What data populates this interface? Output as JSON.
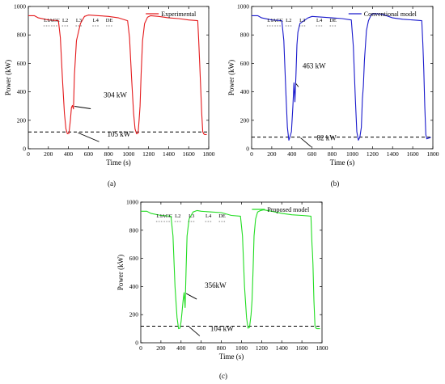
{
  "figure": {
    "panel_labels": [
      "(a)",
      "(b)",
      "(c)"
    ]
  },
  "chart_data": [
    {
      "type": "line",
      "panel": "(a)",
      "xlabel": "Time (s)",
      "ylabel": "Power (kW)",
      "xlim": [
        0,
        1800
      ],
      "ylim": [
        0,
        1000
      ],
      "xticks": [
        0,
        200,
        400,
        600,
        800,
        1000,
        1200,
        1400,
        1600,
        1800
      ],
      "yticks": [
        0,
        200,
        400,
        600,
        800,
        1000
      ],
      "grid": false,
      "legend_position": "top-right",
      "series": [
        {
          "name": "Experimental",
          "color": "#e41a1c",
          "x": [
            0,
            60,
            100,
            200,
            300,
            320,
            340,
            360,
            375,
            390,
            405,
            420,
            430,
            440,
            450,
            460,
            480,
            520,
            560,
            600,
            700,
            800,
            900,
            990,
            1010,
            1030,
            1050,
            1065,
            1080,
            1095,
            1105,
            1115,
            1125,
            1140,
            1160,
            1190,
            1220,
            1300,
            1400,
            1500,
            1600,
            1690,
            1700,
            1705,
            1710,
            1720,
            1730,
            1740,
            1750,
            1760,
            1780
          ],
          "y": [
            935,
            935,
            920,
            905,
            900,
            780,
            500,
            250,
            140,
            105,
            108,
            200,
            290,
            304,
            280,
            520,
            760,
            880,
            930,
            940,
            935,
            930,
            920,
            900,
            780,
            500,
            250,
            140,
            105,
            110,
            200,
            300,
            520,
            760,
            880,
            925,
            935,
            930,
            920,
            915,
            905,
            900,
            760,
            680,
            600,
            420,
            250,
            120,
            105,
            100,
            100
          ]
        }
      ],
      "reference_line": {
        "y": 118,
        "style": "dashed",
        "color": "#000000"
      },
      "phase_labels": [
        "L1",
        "ACC",
        "L2",
        "L3",
        "L4",
        "DE"
      ],
      "annotations": [
        {
          "text": "304 kW",
          "x": 445,
          "y": 304
        },
        {
          "text": "105 kW",
          "x": 480,
          "y": 118
        }
      ]
    },
    {
      "type": "line",
      "panel": "(b)",
      "xlabel": "Time (s)",
      "ylabel": "Power (kW)",
      "xlim": [
        0,
        1800
      ],
      "ylim": [
        0,
        1000
      ],
      "xticks": [
        0,
        200,
        400,
        600,
        800,
        1000,
        1200,
        1400,
        1600,
        1800
      ],
      "yticks": [
        0,
        200,
        400,
        600,
        800,
        1000
      ],
      "grid": false,
      "legend_position": "top-right",
      "series": [
        {
          "name": "Conventional model",
          "color": "#1a1acc",
          "x": [
            0,
            60,
            100,
            200,
            300,
            320,
            340,
            355,
            370,
            380,
            395,
            410,
            420,
            430,
            440,
            450,
            460,
            480,
            520,
            560,
            600,
            700,
            800,
            900,
            990,
            1010,
            1030,
            1045,
            1060,
            1075,
            1090,
            1100,
            1110,
            1120,
            1140,
            1160,
            1190,
            1220,
            1300,
            1400,
            1500,
            1600,
            1690,
            1700,
            1705,
            1710,
            1720,
            1730,
            1740,
            1760,
            1780
          ],
          "y": [
            935,
            935,
            920,
            905,
            900,
            760,
            400,
            150,
            60,
            82,
            120,
            300,
            463,
            330,
            520,
            730,
            820,
            880,
            900,
            920,
            930,
            925,
            920,
            915,
            905,
            720,
            350,
            120,
            60,
            82,
            150,
            350,
            440,
            620,
            830,
            900,
            945,
            950,
            945,
            920,
            910,
            905,
            900,
            740,
            650,
            550,
            300,
            100,
            70,
            75,
            80
          ]
        }
      ],
      "reference_line": {
        "y": 82,
        "style": "dashed",
        "color": "#000000"
      },
      "phase_labels": [
        "L1",
        "ACC",
        "L2",
        "L3",
        "L4",
        "DE"
      ],
      "annotations": [
        {
          "text": "463 kW",
          "x": 425,
          "y": 463
        },
        {
          "text": "82 kW",
          "x": 470,
          "y": 82
        }
      ]
    },
    {
      "type": "line",
      "panel": "(c)",
      "xlabel": "Time (s)",
      "ylabel": "Power (kW)",
      "xlim": [
        0,
        1800
      ],
      "ylim": [
        0,
        1000
      ],
      "xticks": [
        0,
        200,
        400,
        600,
        800,
        1000,
        1200,
        1400,
        1600,
        1800
      ],
      "yticks": [
        0,
        200,
        400,
        600,
        800,
        1000
      ],
      "grid": false,
      "legend_position": "top-right",
      "series": [
        {
          "name": "Proposed model",
          "color": "#22dd22",
          "x": [
            0,
            60,
            100,
            200,
            300,
            320,
            340,
            360,
            375,
            390,
            400,
            410,
            420,
            430,
            440,
            450,
            460,
            480,
            520,
            560,
            600,
            700,
            800,
            900,
            990,
            1010,
            1030,
            1050,
            1065,
            1080,
            1095,
            1105,
            1115,
            1125,
            1140,
            1160,
            1190,
            1220,
            1300,
            1400,
            1500,
            1600,
            1690,
            1700,
            1705,
            1710,
            1720,
            1730,
            1740,
            1750,
            1760,
            1780
          ],
          "y": [
            935,
            935,
            920,
            905,
            900,
            760,
            400,
            180,
            100,
            104,
            150,
            220,
            300,
            356,
            250,
            520,
            760,
            880,
            930,
            940,
            935,
            930,
            925,
            905,
            900,
            760,
            400,
            180,
            104,
            110,
            200,
            300,
            520,
            760,
            880,
            930,
            940,
            945,
            935,
            920,
            910,
            905,
            900,
            700,
            640,
            560,
            300,
            120,
            104,
            100,
            100,
            100
          ]
        }
      ],
      "reference_line": {
        "y": 118,
        "style": "dashed",
        "color": "#000000"
      },
      "phase_labels": [
        "L1",
        "ACC",
        "L2",
        "L3",
        "L4",
        "DE"
      ],
      "annotations": [
        {
          "text": "356kW",
          "x": 435,
          "y": 356
        },
        {
          "text": "104 kW",
          "x": 465,
          "y": 118
        }
      ]
    }
  ]
}
